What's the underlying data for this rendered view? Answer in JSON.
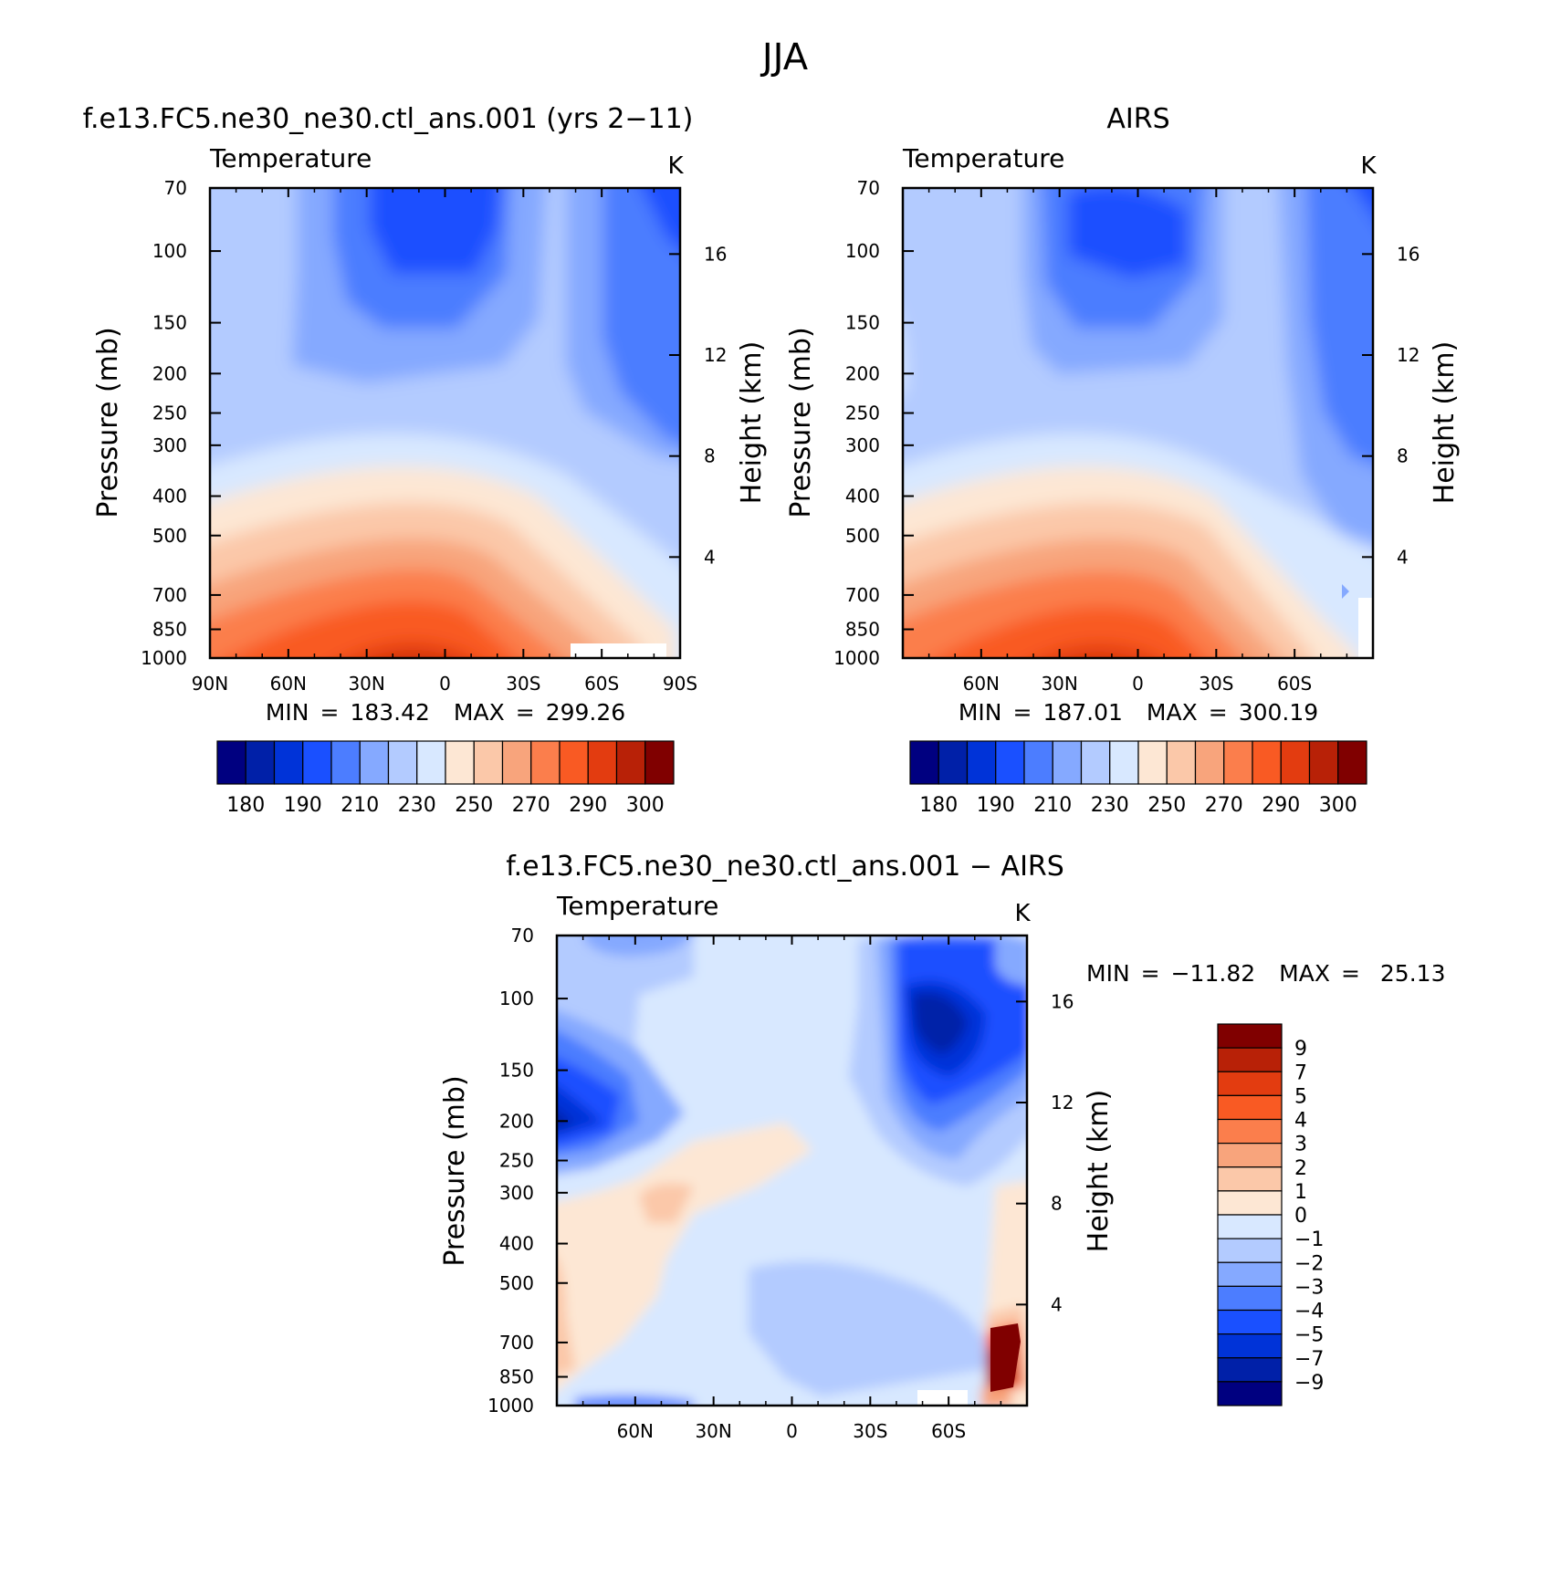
{
  "figure_title": "JJA",
  "min_label": "MIN",
  "max_label": "MAX",
  "eq": "=",
  "chart_data": [
    {
      "type": "heatmap",
      "panel": "model",
      "title": "f.e13.FC5.ne30_ne30.ctl_ans.001 (yrs 2−11)",
      "subtitle": "Temperature",
      "units": "K",
      "ylabel": "Pressure (mb)",
      "y2label": "Height (km)",
      "x_ticks": [
        "90N",
        "60N",
        "30N",
        "0",
        "30S",
        "60S",
        "90S"
      ],
      "y_ticks": [
        70,
        100,
        150,
        200,
        250,
        300,
        400,
        500,
        700,
        850,
        1000
      ],
      "y_scale": "log",
      "ylim": [
        1000,
        70
      ],
      "xlim": [
        90,
        -90
      ],
      "y2_ticks": [
        4,
        8,
        12,
        16
      ],
      "min": "183.42",
      "max": "299.26",
      "colorbar_labels": [
        "180",
        "190",
        "210",
        "230",
        "250",
        "270",
        "290",
        "300"
      ],
      "colorbar_colors": [
        "#000080",
        "#0020a8",
        "#0033d8",
        "#1a50ff",
        "#4c7dff",
        "#85a9ff",
        "#b3cbff",
        "#d8e8ff",
        "#fde7d4",
        "#fbc8a9",
        "#f8a47c",
        "#fb7e4c",
        "#f95a23",
        "#e33c10",
        "#b82107",
        "#800000"
      ]
    },
    {
      "type": "heatmap",
      "panel": "obs",
      "title": "AIRS",
      "subtitle": "Temperature",
      "units": "K",
      "ylabel": "Pressure (mb)",
      "y2label": "Height (km)",
      "x_ticks": [
        "60N",
        "30N",
        "0",
        "30S",
        "60S"
      ],
      "y_ticks": [
        70,
        100,
        150,
        200,
        250,
        300,
        400,
        500,
        700,
        850,
        1000
      ],
      "y_scale": "log",
      "ylim": [
        1000,
        70
      ],
      "xlim": [
        90,
        -90
      ],
      "y2_ticks": [
        4,
        8,
        12,
        16
      ],
      "min": "187.01",
      "max": "300.19",
      "colorbar_labels": [
        "180",
        "190",
        "210",
        "230",
        "250",
        "270",
        "290",
        "300"
      ],
      "colorbar_colors": [
        "#000080",
        "#0020a8",
        "#0033d8",
        "#1a50ff",
        "#4c7dff",
        "#85a9ff",
        "#b3cbff",
        "#d8e8ff",
        "#fde7d4",
        "#fbc8a9",
        "#f8a47c",
        "#fb7e4c",
        "#f95a23",
        "#e33c10",
        "#b82107",
        "#800000"
      ]
    },
    {
      "type": "heatmap",
      "panel": "diff",
      "title": "f.e13.FC5.ne30_ne30.ctl_ans.001 − AIRS",
      "subtitle": "Temperature",
      "units": "K",
      "ylabel": "Pressure (mb)",
      "y2label": "Height (km)",
      "x_ticks": [
        "60N",
        "30N",
        "0",
        "30S",
        "60S"
      ],
      "y_ticks": [
        70,
        100,
        150,
        200,
        250,
        300,
        400,
        500,
        700,
        850,
        1000
      ],
      "y_scale": "log",
      "ylim": [
        1000,
        70
      ],
      "xlim": [
        90,
        -90
      ],
      "y2_ticks": [
        4,
        8,
        12,
        16
      ],
      "min": "−11.82",
      "max": "25.13",
      "colorbar_labels": [
        "9",
        "7",
        "5",
        "4",
        "3",
        "2",
        "1",
        "0",
        "−1",
        "−2",
        "−3",
        "−4",
        "−5",
        "−7",
        "−9"
      ],
      "colorbar_colors": [
        "#800000",
        "#b82107",
        "#e33c10",
        "#f95a23",
        "#fb7e4c",
        "#f8a47c",
        "#fbc8a9",
        "#fde7d4",
        "#d8e8ff",
        "#b3cbff",
        "#85a9ff",
        "#4c7dff",
        "#1a50ff",
        "#0033d8",
        "#0020a8",
        "#000080"
      ]
    }
  ]
}
